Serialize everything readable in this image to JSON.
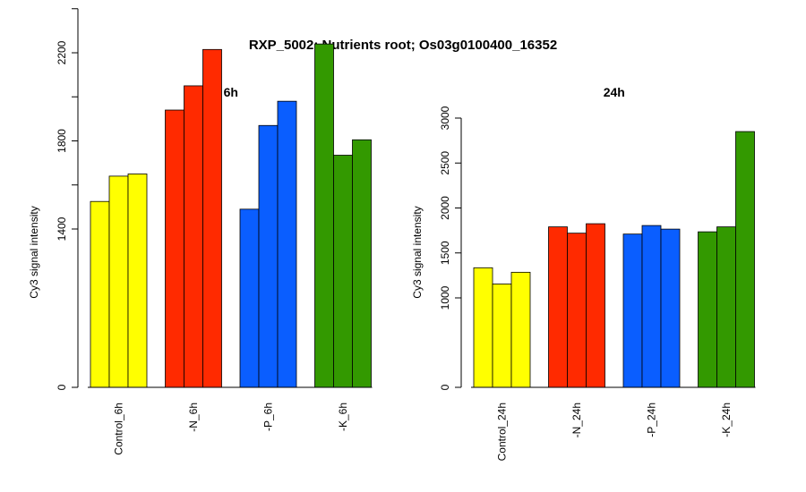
{
  "title": "RXP_5002: Nutrients root; Os03g0100400_16352",
  "chart_data": [
    {
      "type": "bar",
      "title": "6h",
      "ylabel": "Cy3 signal intensity",
      "categories": [
        "Control_6h",
        "-N_6h",
        "-P_6h",
        "-K_6h"
      ],
      "group_colors": [
        "#ffff00",
        "#ff2a00",
        "#0a5eff",
        "#339900"
      ],
      "values": [
        [
          1525,
          1640,
          1650
        ],
        [
          1940,
          2050,
          2215
        ],
        [
          1490,
          1870,
          1980
        ],
        [
          2240,
          1735,
          1805
        ]
      ],
      "yticks": [
        0,
        1400,
        1800,
        2200
      ],
      "ylim": [
        0,
        2400
      ],
      "axis_break": true
    },
    {
      "type": "bar",
      "title": "24h",
      "ylabel": "Cy3 signal intensity",
      "categories": [
        "Control_24h",
        "-N_24h",
        "-P_24h",
        "-K_24h"
      ],
      "group_colors": [
        "#ffff00",
        "#ff2a00",
        "#0a5eff",
        "#339900"
      ],
      "values": [
        [
          1335,
          1155,
          1285
        ],
        [
          1790,
          1720,
          1825
        ],
        [
          1710,
          1805,
          1765
        ],
        [
          1735,
          1790,
          2850
        ]
      ],
      "yticks": [
        0,
        1000,
        1500,
        2000,
        2500,
        3000
      ],
      "ylim": [
        0,
        3000
      ],
      "axis_break": true
    }
  ]
}
